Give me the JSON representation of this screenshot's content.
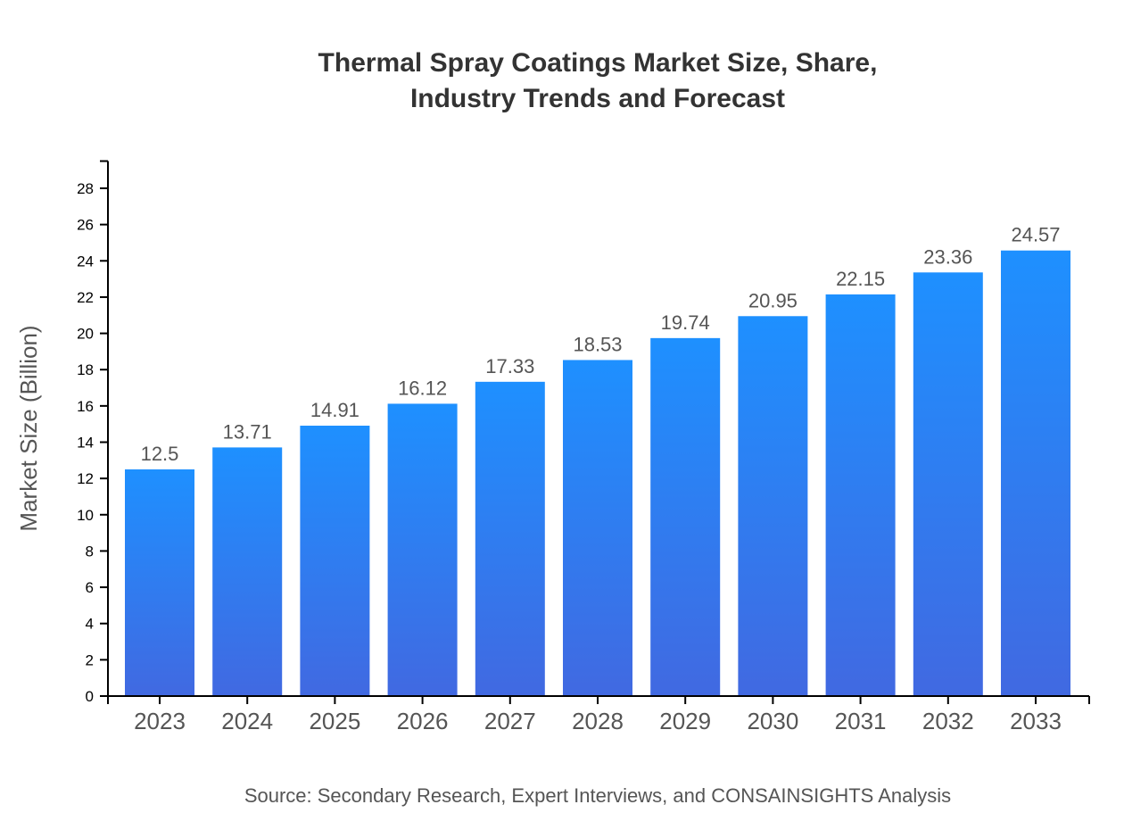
{
  "chart_data": {
    "type": "bar",
    "title_lines": [
      "Thermal Spray Coatings Market Size, Share,",
      "Industry Trends and Forecast"
    ],
    "xlabel": "",
    "ylabel": "Market Size (Billion)",
    "categories": [
      "2023",
      "2024",
      "2025",
      "2026",
      "2027",
      "2028",
      "2029",
      "2030",
      "2031",
      "2032",
      "2033"
    ],
    "values": [
      12.5,
      13.71,
      14.91,
      16.12,
      17.33,
      18.53,
      19.74,
      20.95,
      22.15,
      23.36,
      24.57
    ],
    "data_labels": [
      "12.5",
      "13.71",
      "14.91",
      "16.12",
      "17.33",
      "18.53",
      "19.74",
      "20.95",
      "22.15",
      "23.36",
      "24.57"
    ],
    "ylim": [
      0,
      29.5
    ],
    "yticks": [
      0,
      2,
      4,
      6,
      8,
      10,
      12,
      14,
      16,
      18,
      20,
      22,
      24,
      26,
      28
    ],
    "grid": false,
    "legend": "none",
    "colors": {
      "bar_top": "#1e90ff",
      "bar_bottom": "#4169e1"
    },
    "source": "Source: Secondary Research, Expert Interviews, and CONSAINSIGHTS Analysis"
  }
}
